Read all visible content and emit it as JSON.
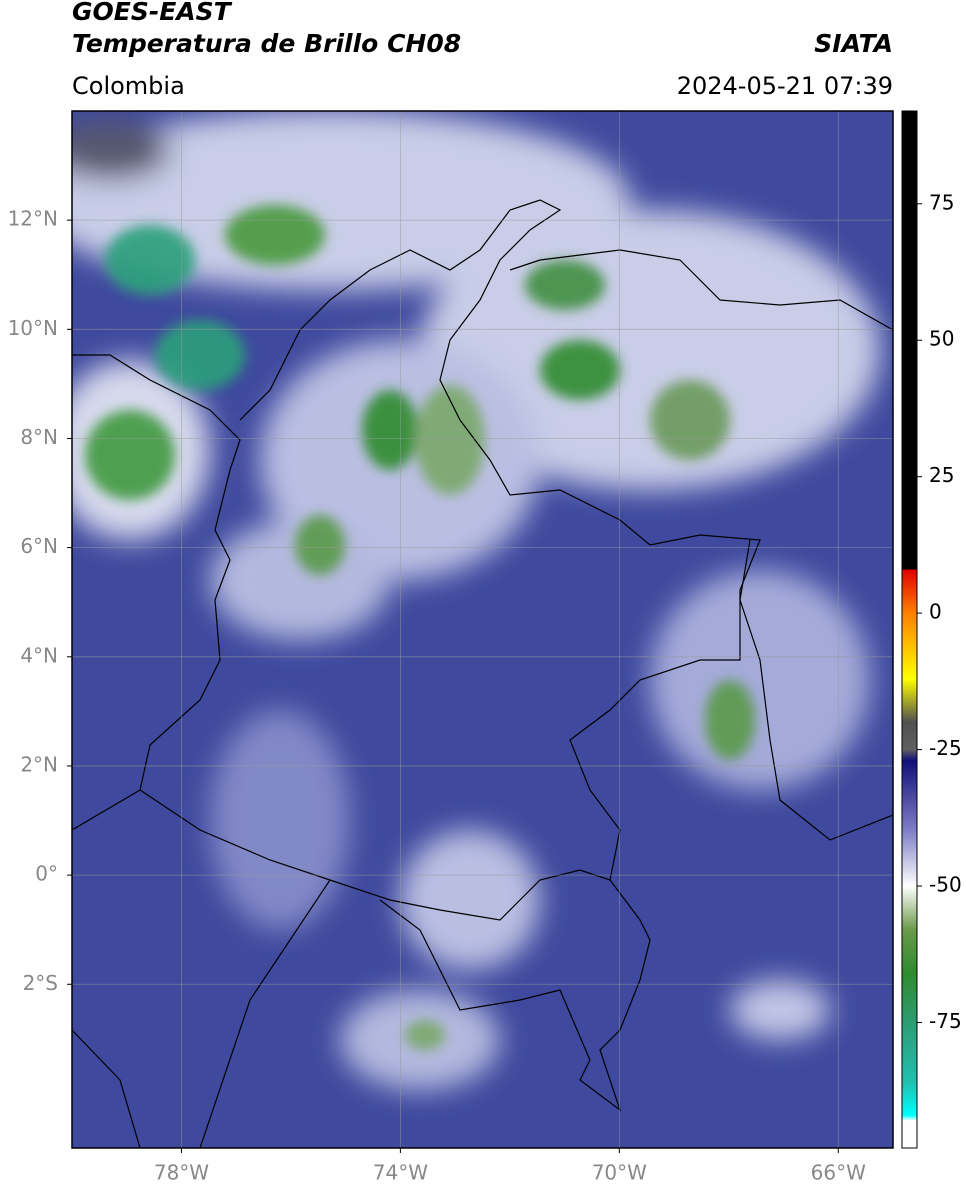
{
  "header": {
    "title": "GOES-EAST",
    "subtitle": "Temperatura de Brillo CH08",
    "source": "SIATA",
    "region": "Colombia",
    "datetime": "2024-05-21 07:39"
  },
  "map": {
    "lonlim": [
      -80,
      -65
    ],
    "latlim": [
      -5,
      14
    ],
    "lonticks": [
      {
        "value": -78,
        "label": "78°W"
      },
      {
        "value": -74,
        "label": "74°W"
      },
      {
        "value": -70,
        "label": "70°W"
      },
      {
        "value": -66,
        "label": "66°W"
      }
    ],
    "latticks": [
      {
        "value": 12,
        "label": "12°N"
      },
      {
        "value": 10,
        "label": "10°N"
      },
      {
        "value": 8,
        "label": "8°N"
      },
      {
        "value": 6,
        "label": "6°N"
      },
      {
        "value": 4,
        "label": "4°N"
      },
      {
        "value": 2,
        "label": "2°N"
      },
      {
        "value": 0,
        "label": "0°"
      },
      {
        "value": -2,
        "label": "2°S"
      }
    ],
    "grid": true
  },
  "colorbar": {
    "lim": [
      -98,
      92
    ],
    "ticks": [
      75,
      50,
      25,
      0,
      -25,
      -50,
      -75
    ],
    "stops": [
      {
        "value": 92,
        "color": "#000000"
      },
      {
        "value": 8,
        "color": "#000000"
      },
      {
        "value": 8,
        "color": "#e00000"
      },
      {
        "value": 0,
        "color": "#ff8000"
      },
      {
        "value": -12,
        "color": "#ffff00"
      },
      {
        "value": -20,
        "color": "#505050"
      },
      {
        "value": -25,
        "color": "#606060"
      },
      {
        "value": -27,
        "color": "#10107a"
      },
      {
        "value": -40,
        "color": "#8080c8"
      },
      {
        "value": -50,
        "color": "#ffffff"
      },
      {
        "value": -58,
        "color": "#6a9a4a"
      },
      {
        "value": -66,
        "color": "#2e8b2e"
      },
      {
        "value": -76,
        "color": "#2ca07a"
      },
      {
        "value": -86,
        "color": "#20c0b0"
      },
      {
        "value": -92,
        "color": "#00ffff"
      },
      {
        "value": -93,
        "color": "#ffffff"
      },
      {
        "value": -98,
        "color": "#ffffff"
      }
    ]
  }
}
